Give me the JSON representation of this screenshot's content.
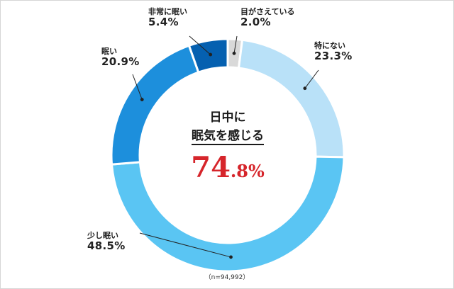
{
  "chart_data": {
    "type": "pie",
    "style": "donut",
    "series": [
      {
        "name": "目がさえている",
        "value": 2.0,
        "display": "2.0%",
        "color": "#d9d9d9"
      },
      {
        "name": "特にない",
        "value": 23.3,
        "display": "23.3%",
        "color": "#b9e1f8"
      },
      {
        "name": "少し眠い",
        "value": 48.5,
        "display": "48.5%",
        "color": "#5ac5f3"
      },
      {
        "name": "眠い",
        "value": 20.9,
        "display": "20.9%",
        "color": "#1d8fdc"
      },
      {
        "name": "非常に眠い",
        "value": 5.4,
        "display": "5.4%",
        "color": "#0560b0"
      }
    ],
    "start": "top, clockwise",
    "center": {
      "line1": "日中に",
      "line2": "眠気を感じる",
      "value_int": "74",
      "value_dec": ".8%",
      "value_color": "#d6252b"
    },
    "note": "（n=94,992）"
  }
}
